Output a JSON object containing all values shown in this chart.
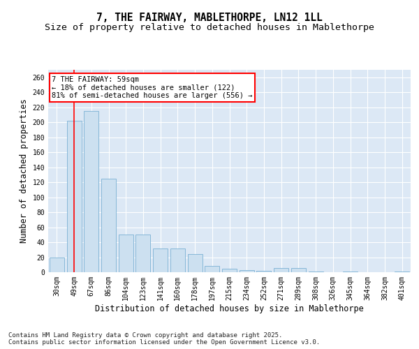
{
  "title1": "7, THE FAIRWAY, MABLETHORPE, LN12 1LL",
  "title2": "Size of property relative to detached houses in Mablethorpe",
  "xlabel": "Distribution of detached houses by size in Mablethorpe",
  "ylabel": "Number of detached properties",
  "categories": [
    "30sqm",
    "49sqm",
    "67sqm",
    "86sqm",
    "104sqm",
    "123sqm",
    "141sqm",
    "160sqm",
    "178sqm",
    "197sqm",
    "215sqm",
    "234sqm",
    "252sqm",
    "271sqm",
    "289sqm",
    "308sqm",
    "326sqm",
    "345sqm",
    "364sqm",
    "382sqm",
    "401sqm"
  ],
  "values": [
    20,
    202,
    215,
    125,
    50,
    50,
    32,
    32,
    24,
    8,
    5,
    3,
    2,
    6,
    6,
    1,
    0,
    1,
    0,
    0,
    1
  ],
  "bar_color": "#cce0f0",
  "bar_edge_color": "#7ab0d4",
  "annotation_text": "7 THE FAIRWAY: 59sqm\n← 18% of detached houses are smaller (122)\n81% of semi-detached houses are larger (556) →",
  "annotation_box_color": "white",
  "annotation_box_edge_color": "red",
  "vline_color": "red",
  "vline_x_index": 1.0,
  "ylim": [
    0,
    270
  ],
  "yticks": [
    0,
    20,
    40,
    60,
    80,
    100,
    120,
    140,
    160,
    180,
    200,
    220,
    240,
    260
  ],
  "footnote": "Contains HM Land Registry data © Crown copyright and database right 2025.\nContains public sector information licensed under the Open Government Licence v3.0.",
  "fig_bg_color": "#ffffff",
  "plot_bg_color": "#dce8f5",
  "title_fontsize": 10.5,
  "subtitle_fontsize": 9.5,
  "axis_label_fontsize": 8.5,
  "tick_fontsize": 7,
  "footnote_fontsize": 6.5,
  "grid_color": "#ffffff"
}
